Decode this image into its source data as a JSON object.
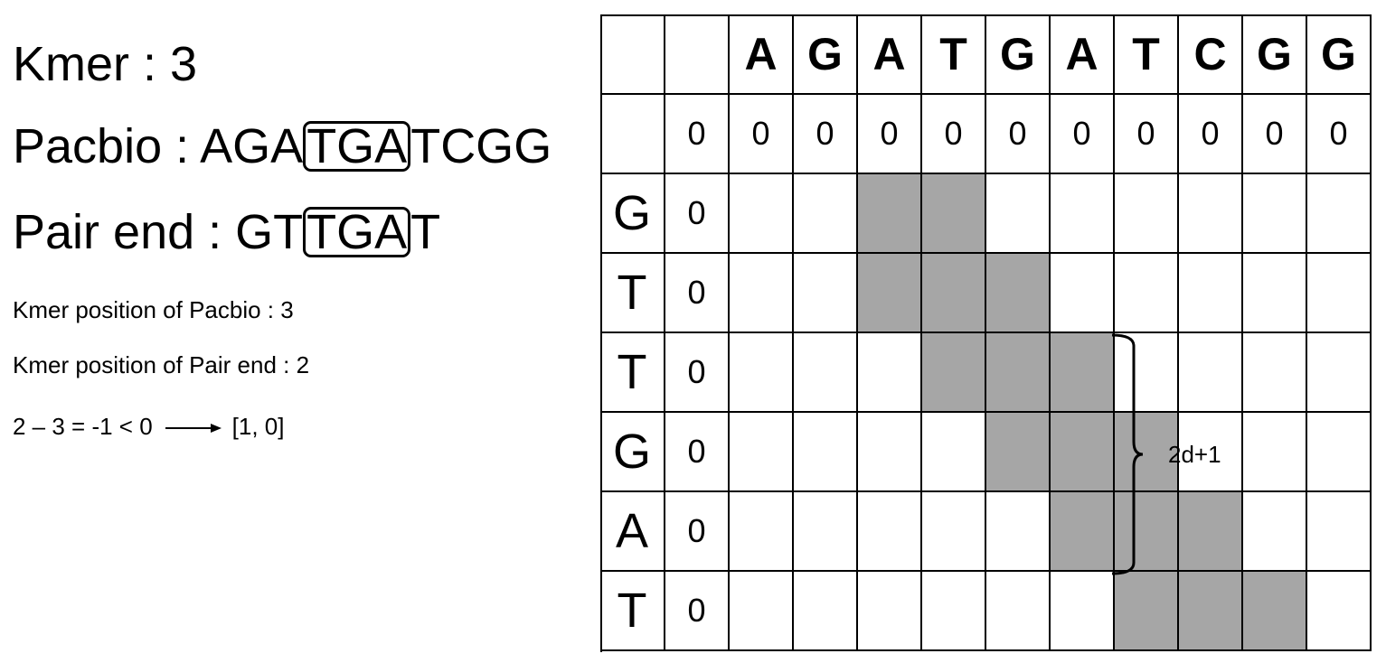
{
  "left": {
    "kmer_line": "Kmer : 3",
    "pacbio_prefix": "Pacbio : AGA",
    "pacbio_boxed": "TGA",
    "pacbio_suffix": "TCGG",
    "pair_prefix": "Pair end : GT",
    "pair_boxed": "TGA",
    "pair_suffix": "T",
    "pos_pacbio": "Kmer position of Pacbio : 3",
    "pos_pair": "Kmer position of Pair end : 2",
    "calc_left": "2 – 3 = -1 < 0",
    "calc_right": "[1, 0]"
  },
  "matrix": {
    "column_header": [
      "A",
      "G",
      "A",
      "T",
      "G",
      "A",
      "T",
      "C",
      "G",
      "G"
    ],
    "row_header": [
      "G",
      "T",
      "T",
      "G",
      "A",
      "T"
    ],
    "zero_row": [
      "0",
      "0",
      "0",
      "0",
      "0",
      "0",
      "0",
      "0",
      "0",
      "0",
      "0"
    ],
    "zero_col": [
      "0",
      "0",
      "0",
      "0",
      "0",
      "0"
    ],
    "band_shaded": [
      [
        3,
        4
      ],
      [
        3,
        5
      ],
      [
        4,
        6
      ],
      [
        5,
        7
      ],
      [
        6,
        8
      ],
      [
        7,
        9
      ]
    ],
    "band_color": "#a6a6a6",
    "brace_label": "2d+1"
  }
}
